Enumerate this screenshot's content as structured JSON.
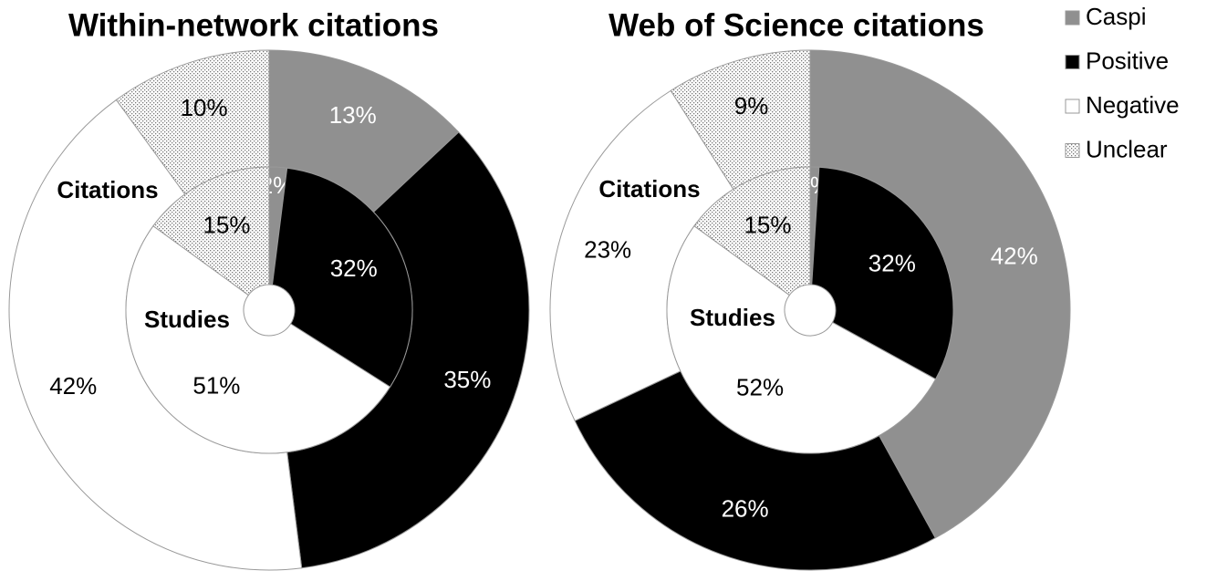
{
  "chart_data": [
    {
      "type": "donut",
      "title": "Within-network citations",
      "categories": [
        "Caspi",
        "Positive",
        "Negative",
        "Unclear"
      ],
      "colors": [
        "#909090",
        "#000000",
        "#ffffff",
        "#e6e6e6"
      ],
      "series": [
        {
          "name": "Citations",
          "values": [
            13,
            35,
            42,
            10
          ],
          "value_labels": [
            "13%",
            "35%",
            "42%",
            "10%"
          ]
        },
        {
          "name": "Studies",
          "values": [
            2,
            32,
            51,
            15
          ],
          "value_labels": [
            "2%",
            "32%",
            "51%",
            "15%"
          ]
        }
      ]
    },
    {
      "type": "donut",
      "title": "Web of Science citations",
      "categories": [
        "Caspi",
        "Positive",
        "Negative",
        "Unclear"
      ],
      "colors": [
        "#909090",
        "#000000",
        "#ffffff",
        "#e6e6e6"
      ],
      "series": [
        {
          "name": "Citations",
          "values": [
            42,
            26,
            23,
            9
          ],
          "value_labels": [
            "42%",
            "26%",
            "23%",
            "9%"
          ]
        },
        {
          "name": "Studies",
          "values": [
            1,
            32,
            52,
            15
          ],
          "value_labels": [
            "1%",
            "32%",
            "52%",
            "15%"
          ]
        }
      ]
    }
  ]
}
